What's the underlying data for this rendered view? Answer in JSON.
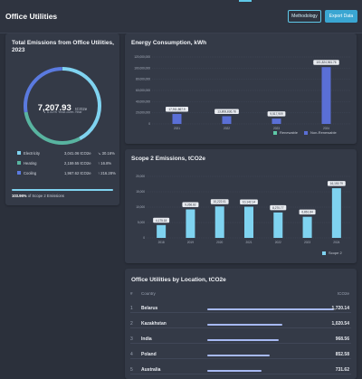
{
  "header": {
    "title": "Office Utilities",
    "methodology_label": "Methodology",
    "export_label": "Export Data"
  },
  "total_card": {
    "title": "Total Emissions from Office Utilities, 2023",
    "value": "7,207.93",
    "unit": "tCO2e",
    "change": "↘ 5.41% Year-over-Year",
    "breakdown": [
      {
        "label": "Electricity",
        "value": "3,041.06 tCO2e",
        "change": "↘ 30.16%",
        "color": "#7fd3f0"
      },
      {
        "label": "Heating",
        "value": "2,159.55 tCO2e",
        "change": "↑ 16.8%",
        "color": "#58b4a0"
      },
      {
        "label": "Cooling",
        "value": "1,967.62 tCO2e",
        "change": "↑ 216.28%",
        "color": "#5a7ae0"
      }
    ],
    "scope_percent": "103.96%",
    "scope_label": "of Scope 2 Emissions",
    "scope_fill": 1.0
  },
  "energy_card": {
    "title": "Energy Consumption, kWh",
    "chart_data": {
      "type": "bar",
      "categories": [
        "2021",
        "2022",
        "2023",
        "2024"
      ],
      "series": [
        {
          "name": "Renewable",
          "values": [
            0,
            0,
            0,
            0
          ],
          "color": "#5ec9a8"
        },
        {
          "name": "Non-Renewable",
          "values": [
            17911867.9,
            13808836.78,
            9517909,
            101824561.76
          ],
          "color": "#5a6fd6"
        }
      ],
      "labels": [
        "17,911,867.9",
        "13,808,836.78",
        "9,517,909",
        "101,824,561.76"
      ],
      "yticks": [
        "120,000,000",
        "100,000,000",
        "80,000,000",
        "60,000,000",
        "40,000,000",
        "20,000,000",
        "0"
      ],
      "ylim": [
        0,
        120000000
      ]
    }
  },
  "scope2_card": {
    "title": "Scope 2 Emissions, tCO2e",
    "chart_data": {
      "type": "bar",
      "categories": [
        "2018",
        "2019",
        "2020",
        "2021",
        "2022",
        "2023",
        "2024"
      ],
      "series": [
        {
          "name": "Scope 2",
          "values": [
            4175.18,
            9266.82,
            10222.01,
            10142.14,
            8270.77,
            6861.84,
            16150.79
          ],
          "color": "#7fd3f0"
        }
      ],
      "labels": [
        "4,175.18",
        "9,266.82",
        "10,222.01",
        "10,142.14",
        "8,270.77",
        "6,861.84",
        "16,150.79"
      ],
      "yticks": [
        "20,000",
        "15,000",
        "10,000",
        "5,000",
        "0"
      ],
      "ylim": [
        0,
        20000
      ]
    }
  },
  "location_card": {
    "title": "Office Utilities by Location, tCO2e",
    "col_index": "#",
    "col_country": "Country",
    "col_value": "tCO2e",
    "rows": [
      {
        "rank": "1",
        "country": "Belarus",
        "value": "1,720.14",
        "amount": 1720.14
      },
      {
        "rank": "2",
        "country": "Kazakhstan",
        "value": "1,020.54",
        "amount": 1020.54
      },
      {
        "rank": "3",
        "country": "India",
        "value": "968.56",
        "amount": 968.56
      },
      {
        "rank": "4",
        "country": "Poland",
        "value": "852.58",
        "amount": 852.58
      },
      {
        "rank": "5",
        "country": "Australia",
        "value": "731.62",
        "amount": 731.62
      }
    ]
  }
}
